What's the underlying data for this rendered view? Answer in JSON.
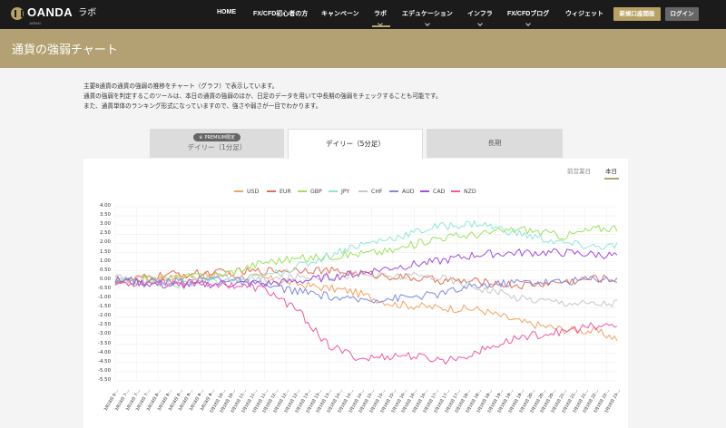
{
  "nav": {
    "logo": "OANDA",
    "logo_sub": "JAPAN",
    "logo_lab": "ラボ",
    "items": [
      "HOME",
      "FX/CFD初心者の方",
      "キャンペーン",
      "ラボ",
      "エデュケーション",
      "インフラ",
      "FX/CFDブログ",
      "ウィジェット"
    ],
    "new_account": "新規口座開設",
    "login": "ログイン"
  },
  "banner": {
    "title": "通貨の強弱チャート"
  },
  "intro": [
    "主要8通貨の通貨の強弱の推移をチャート（グラフ）で表示しています。",
    "通貨の強弱を判定するこのツールは、本日の通貨の強弱のほか、日足のデータを用いて中長期の強弱をチェックすることも可能です。",
    "また、通貨単体のランキング形式になっていますので、強さや弱さが一目でわかります。"
  ],
  "tabs": {
    "premium_badge": "PREMIUM限定",
    "daily1": "デイリー（1分足）",
    "daily5": "デイリー（5分足）",
    "long": "長期"
  },
  "subtabs": {
    "prev": "前営業日",
    "today": "本日"
  },
  "colors": {
    "accent": "#b4a173",
    "USD": "#f4a261",
    "EUR": "#e76f51",
    "GBP": "#9be35a",
    "JPY": "#8fe6d6",
    "CHF": "#c8c8c8",
    "AUD": "#7d8be0",
    "CAD": "#a04ee0",
    "NZD": "#ef5aa0"
  },
  "chart_data": {
    "type": "line",
    "series_names": [
      "USD",
      "EUR",
      "GBP",
      "JPY",
      "CHF",
      "AUD",
      "CAD",
      "NZD"
    ],
    "ylim": [
      -5.5,
      4.0
    ],
    "yticks": [
      "4.00",
      "3.50",
      "3.00",
      "2.50",
      "2.00",
      "1.50",
      "1.00",
      "0.50",
      "0.00",
      "-0.50",
      "-1.00",
      "-1.50",
      "-2.00",
      "-2.50",
      "-3.00",
      "-3.50",
      "-4.00",
      "-4.50",
      "-5.00",
      "-5.50"
    ],
    "x": [
      "3月18日 6:...",
      "3月18日 7:...",
      "3月18日 7:...",
      "3月18日 7:...",
      "3月18日 8:...",
      "3月18日 8:...",
      "3月18日 8:...",
      "3月18日 9:...",
      "3月18日 9:...",
      "3月18日 9:...",
      "3月18日 10:...",
      "3月18日 10:...",
      "3月18日 11:...",
      "3月18日 11:...",
      "3月18日 11:...",
      "3月18日 12:...",
      "3月18日 12:...",
      "3月18日 12:...",
      "3月18日 13:...",
      "3月18日 13:...",
      "3月18日 13:...",
      "3月18日 14:...",
      "3月18日 14:...",
      "3月18日 14:...",
      "3月18日 15:...",
      "3月18日 15:...",
      "3月18日 15:...",
      "3月18日 16:...",
      "3月18日 16:...",
      "3月18日 16:...",
      "3月18日 17:...",
      "3月18日 17:...",
      "3月18日 17:...",
      "3月18日 18:...",
      "3月18日 18:...",
      "3月18日 18:...",
      "3月18日 19:...",
      "3月18日 19:...",
      "3月18日 19:...",
      "3月18日 20:...",
      "3月18日 20:...",
      "3月18日 20:...",
      "3月18日 21:...",
      "3月18日 21:...",
      "3月18日 21:...",
      "3月18日 22:...",
      "3月18日 22:...",
      "3月18日 23:..."
    ],
    "series": [
      {
        "name": "USD",
        "anchors": [
          [
            0,
            0.0
          ],
          [
            5,
            0.1
          ],
          [
            10,
            0.3
          ],
          [
            14,
            0.1
          ],
          [
            18,
            -0.3
          ],
          [
            22,
            -0.6
          ],
          [
            26,
            -1.3
          ],
          [
            30,
            -1.5
          ],
          [
            34,
            -1.6
          ],
          [
            38,
            -2.3
          ],
          [
            42,
            -2.7
          ],
          [
            45,
            -2.8
          ],
          [
            48,
            -3.4
          ]
        ]
      },
      {
        "name": "EUR",
        "anchors": [
          [
            0,
            -0.1
          ],
          [
            5,
            0.3
          ],
          [
            10,
            0.4
          ],
          [
            14,
            0.5
          ],
          [
            18,
            0.6
          ],
          [
            22,
            0.4
          ],
          [
            26,
            0.2
          ],
          [
            30,
            0.0
          ],
          [
            34,
            -0.1
          ],
          [
            38,
            -0.3
          ],
          [
            42,
            -0.1
          ],
          [
            45,
            0.1
          ],
          [
            48,
            0.0
          ]
        ]
      },
      {
        "name": "GBP",
        "anchors": [
          [
            0,
            -0.1
          ],
          [
            5,
            0.1
          ],
          [
            10,
            0.3
          ],
          [
            14,
            1.0
          ],
          [
            18,
            1.2
          ],
          [
            22,
            1.4
          ],
          [
            26,
            1.6
          ],
          [
            30,
            2.3
          ],
          [
            34,
            2.5
          ],
          [
            38,
            2.8
          ],
          [
            42,
            2.4
          ],
          [
            45,
            2.8
          ],
          [
            48,
            2.9
          ]
        ]
      },
      {
        "name": "JPY",
        "anchors": [
          [
            0,
            0.0
          ],
          [
            5,
            -0.3
          ],
          [
            10,
            -0.1
          ],
          [
            14,
            0.2
          ],
          [
            18,
            0.9
          ],
          [
            22,
            1.8
          ],
          [
            26,
            2.3
          ],
          [
            30,
            2.9
          ],
          [
            34,
            3.1
          ],
          [
            38,
            2.5
          ],
          [
            42,
            2.0
          ],
          [
            45,
            1.8
          ],
          [
            48,
            1.9
          ]
        ]
      },
      {
        "name": "CHF",
        "anchors": [
          [
            0,
            0.1
          ],
          [
            5,
            0.0
          ],
          [
            10,
            0.1
          ],
          [
            14,
            0.0
          ],
          [
            18,
            0.2
          ],
          [
            22,
            0.3
          ],
          [
            26,
            0.2
          ],
          [
            30,
            0.2
          ],
          [
            34,
            -0.4
          ],
          [
            38,
            -1.0
          ],
          [
            42,
            -1.2
          ],
          [
            45,
            -1.3
          ],
          [
            48,
            -1.2
          ]
        ]
      },
      {
        "name": "AUD",
        "anchors": [
          [
            0,
            0.0
          ],
          [
            5,
            -0.1
          ],
          [
            10,
            0.1
          ],
          [
            14,
            -0.3
          ],
          [
            18,
            -0.7
          ],
          [
            22,
            -1.1
          ],
          [
            26,
            -1.0
          ],
          [
            30,
            -0.8
          ],
          [
            34,
            -0.3
          ],
          [
            38,
            -0.1
          ],
          [
            42,
            -0.1
          ],
          [
            45,
            0.1
          ],
          [
            48,
            0.0
          ]
        ]
      },
      {
        "name": "CAD",
        "anchors": [
          [
            0,
            0.0
          ],
          [
            5,
            -0.3
          ],
          [
            10,
            -0.2
          ],
          [
            14,
            -0.2
          ],
          [
            18,
            0.0
          ],
          [
            22,
            0.3
          ],
          [
            26,
            0.7
          ],
          [
            30,
            1.0
          ],
          [
            34,
            1.4
          ],
          [
            38,
            1.5
          ],
          [
            42,
            1.5
          ],
          [
            45,
            1.4
          ],
          [
            48,
            1.3
          ]
        ]
      },
      {
        "name": "NZD",
        "anchors": [
          [
            0,
            -0.2
          ],
          [
            5,
            -0.1
          ],
          [
            10,
            -0.2
          ],
          [
            14,
            -0.5
          ],
          [
            17,
            -1.6
          ],
          [
            20,
            -3.6
          ],
          [
            23,
            -4.3
          ],
          [
            27,
            -4.1
          ],
          [
            31,
            -4.4
          ],
          [
            34,
            -3.9
          ],
          [
            38,
            -3.1
          ],
          [
            42,
            -2.8
          ],
          [
            45,
            -2.5
          ],
          [
            48,
            -2.5
          ]
        ]
      }
    ]
  }
}
